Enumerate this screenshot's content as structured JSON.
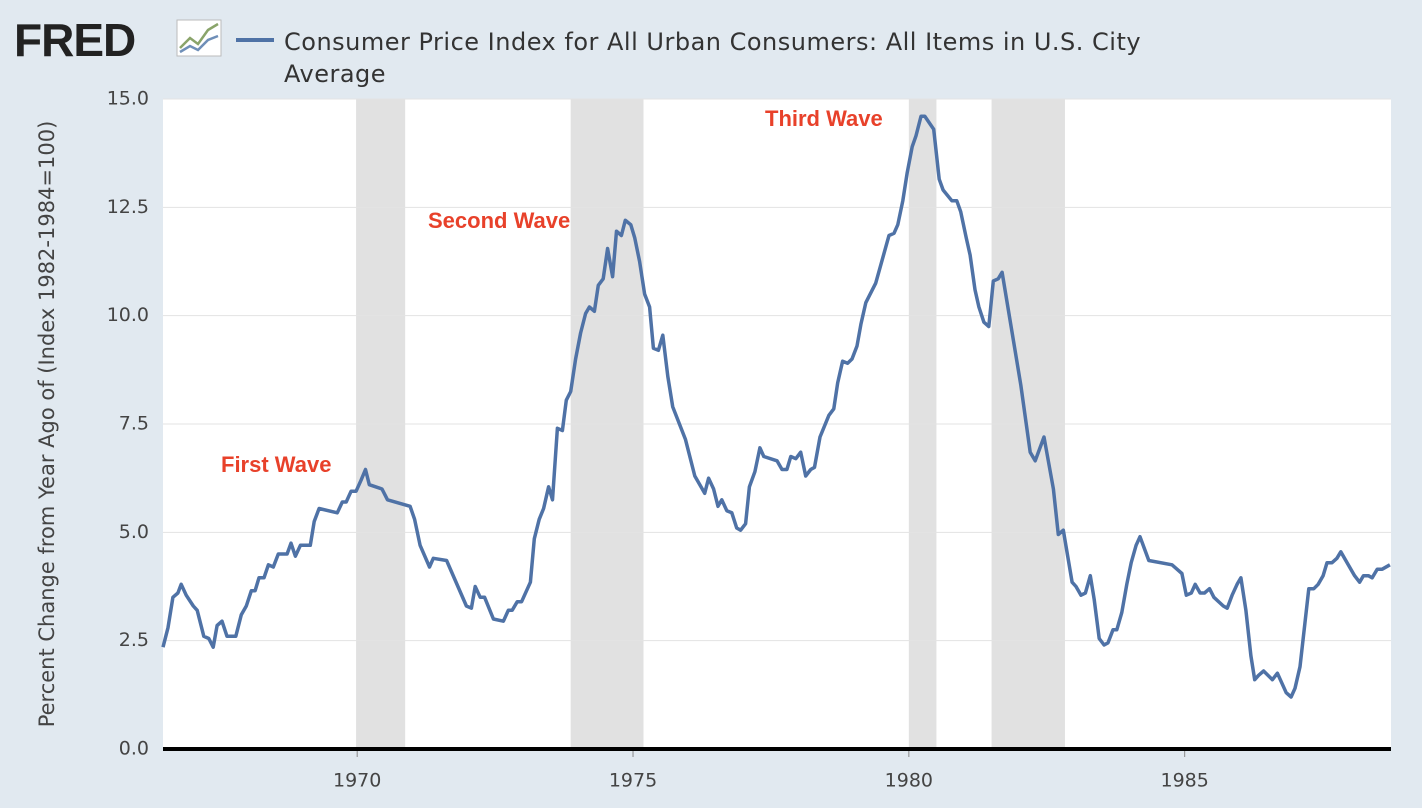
{
  "chart_data": {
    "type": "line",
    "logo": "FRED",
    "ylabel": "Percent Change from Year Ago of (Index 1982-1984=100)",
    "annotations": [
      "First Wave",
      "Second Wave",
      "Third Wave"
    ],
    "xlim": [
      1966.48,
      1988.74
    ],
    "xticks": [
      1970,
      1975,
      1980,
      1985
    ],
    "ylim": [
      0,
      15
    ],
    "yticks": [
      {
        "value": 0,
        "label": "0.0"
      },
      2.5,
      {
        "value": 5,
        "label": "5.0"
      },
      7.5,
      {
        "value": 10,
        "label": "10.0"
      },
      12.5,
      {
        "value": 15,
        "label": "15.0"
      }
    ],
    "grid": true,
    "recessions": [
      [
        1969.98,
        1970.87
      ],
      [
        1973.87,
        1975.19
      ],
      [
        1980.0,
        1980.5
      ],
      [
        1981.5,
        1982.83
      ]
    ],
    "recession_color": "#e1e1e1",
    "x": [
      1966.48,
      1966.57,
      1966.66,
      1966.75,
      1966.81,
      1966.9,
      1967.03,
      1967.1,
      1967.22,
      1967.31,
      1967.39,
      1967.46,
      1967.55,
      1967.64,
      1967.8,
      1967.9,
      1967.99,
      1968.08,
      1968.15,
      1968.22,
      1968.31,
      1968.39,
      1968.48,
      1968.57,
      1968.73,
      1968.8,
      1968.88,
      1968.97,
      1969.15,
      1969.22,
      1969.31,
      1969.64,
      1969.73,
      1969.8,
      1969.89,
      1969.98,
      1970.07,
      1970.15,
      1970.22,
      1970.45,
      1970.55,
      1970.96,
      1971.04,
      1971.14,
      1971.31,
      1971.38,
      1971.62,
      1971.98,
      1972.07,
      1972.14,
      1972.23,
      1972.31,
      1972.47,
      1972.65,
      1972.74,
      1972.81,
      1972.9,
      1972.98,
      1973.14,
      1973.21,
      1973.3,
      1973.38,
      1973.47,
      1973.54,
      1973.63,
      1973.72,
      1973.79,
      1973.87,
      1973.96,
      1974.05,
      1974.14,
      1974.21,
      1974.3,
      1974.37,
      1974.46,
      1974.54,
      1974.63,
      1974.7,
      1974.79,
      1974.86,
      1974.96,
      1975.03,
      1975.12,
      1975.21,
      1975.3,
      1975.37,
      1975.46,
      1975.54,
      1975.63,
      1975.72,
      1975.95,
      1976.12,
      1976.3,
      1976.37,
      1976.46,
      1976.54,
      1976.61,
      1976.7,
      1976.79,
      1976.88,
      1976.95,
      1977.04,
      1977.11,
      1977.21,
      1977.3,
      1977.37,
      1977.61,
      1977.7,
      1977.79,
      1977.86,
      1977.95,
      1978.04,
      1978.13,
      1978.22,
      1978.29,
      1978.39,
      1978.55,
      1978.64,
      1978.71,
      1978.8,
      1978.89,
      1978.97,
      1979.06,
      1979.13,
      1979.22,
      1979.4,
      1979.64,
      1979.73,
      1979.8,
      1979.89,
      1979.97,
      1980.06,
      1980.13,
      1980.22,
      1980.29,
      1980.45,
      1980.55,
      1980.62,
      1980.78,
      1980.87,
      1980.94,
      1981.04,
      1981.11,
      1981.2,
      1981.27,
      1981.36,
      1981.45,
      1981.53,
      1981.62,
      1981.69,
      1982.03,
      1982.2,
      1982.29,
      1982.45,
      1982.62,
      1982.71,
      1982.8,
      1982.96,
      1983.03,
      1983.12,
      1983.2,
      1983.29,
      1983.36,
      1983.45,
      1983.54,
      1983.61,
      1983.7,
      1983.77,
      1983.86,
      1983.95,
      1984.03,
      1984.12,
      1984.19,
      1984.35,
      1984.77,
      1984.86,
      1984.95,
      1985.03,
      1985.12,
      1985.19,
      1985.28,
      1985.36,
      1985.45,
      1985.53,
      1985.7,
      1985.77,
      1985.86,
      1985.95,
      1986.02,
      1986.11,
      1986.2,
      1986.27,
      1986.34,
      1986.43,
      1986.59,
      1986.68,
      1986.84,
      1986.93,
      1987.0,
      1987.09,
      1987.18,
      1987.25,
      1987.34,
      1987.42,
      1987.51,
      1987.58,
      1987.67,
      1987.76,
      1987.83,
      1987.92,
      1988.08,
      1988.17,
      1988.24,
      1988.33,
      1988.4,
      1988.49,
      1988.58,
      1988.72
    ],
    "series": [
      {
        "name": "Consumer Price Index for All Urban Consumers: All Items in U.S. City Average",
        "color": "#4f72a6",
        "values": [
          2.35,
          2.8,
          3.5,
          3.6,
          3.8,
          3.55,
          3.3,
          3.2,
          2.6,
          2.55,
          2.35,
          2.85,
          2.95,
          2.6,
          2.6,
          3.1,
          3.3,
          3.65,
          3.65,
          3.95,
          3.95,
          4.25,
          4.2,
          4.5,
          4.5,
          4.75,
          4.45,
          4.7,
          4.7,
          5.25,
          5.55,
          5.45,
          5.7,
          5.7,
          5.95,
          5.95,
          6.2,
          6.45,
          6.1,
          6.0,
          5.75,
          5.6,
          5.3,
          4.7,
          4.2,
          4.4,
          4.35,
          3.3,
          3.25,
          3.75,
          3.5,
          3.5,
          3.0,
          2.95,
          3.2,
          3.2,
          3.4,
          3.4,
          3.85,
          4.85,
          5.3,
          5.55,
          6.05,
          5.75,
          7.4,
          7.35,
          8.05,
          8.25,
          9.0,
          9.6,
          10.05,
          10.2,
          10.1,
          10.7,
          10.85,
          11.55,
          10.9,
          11.95,
          11.85,
          12.2,
          12.1,
          11.8,
          11.25,
          10.5,
          10.2,
          9.25,
          9.2,
          9.55,
          8.6,
          7.9,
          7.15,
          6.3,
          5.9,
          6.25,
          6.0,
          5.6,
          5.75,
          5.5,
          5.45,
          5.1,
          5.05,
          5.2,
          6.05,
          6.4,
          6.95,
          6.75,
          6.65,
          6.45,
          6.45,
          6.75,
          6.7,
          6.85,
          6.3,
          6.45,
          6.5,
          7.2,
          7.7,
          7.85,
          8.45,
          8.95,
          8.9,
          9.0,
          9.3,
          9.8,
          10.3,
          10.75,
          11.85,
          11.9,
          12.1,
          12.65,
          13.3,
          13.9,
          14.15,
          14.6,
          14.6,
          14.3,
          13.15,
          12.9,
          12.65,
          12.65,
          12.4,
          11.8,
          11.4,
          10.6,
          10.2,
          9.85,
          9.75,
          10.8,
          10.85,
          11.0,
          8.4,
          6.85,
          6.65,
          7.2,
          6.0,
          4.95,
          5.05,
          3.85,
          3.75,
          3.55,
          3.6,
          4.0,
          3.45,
          2.55,
          2.4,
          2.45,
          2.75,
          2.75,
          3.15,
          3.8,
          4.3,
          4.7,
          4.9,
          4.35,
          4.25,
          4.15,
          4.05,
          3.55,
          3.6,
          3.8,
          3.6,
          3.6,
          3.7,
          3.5,
          3.3,
          3.25,
          3.55,
          3.8,
          3.95,
          3.2,
          2.15,
          1.6,
          1.7,
          1.8,
          1.6,
          1.75,
          1.3,
          1.2,
          1.4,
          1.9,
          2.9,
          3.7,
          3.7,
          3.8,
          4.0,
          4.3,
          4.3,
          4.4,
          4.55,
          4.35,
          4.0,
          3.85,
          4.0,
          4.0,
          3.95,
          4.15,
          4.15,
          4.25
        ]
      }
    ]
  }
}
